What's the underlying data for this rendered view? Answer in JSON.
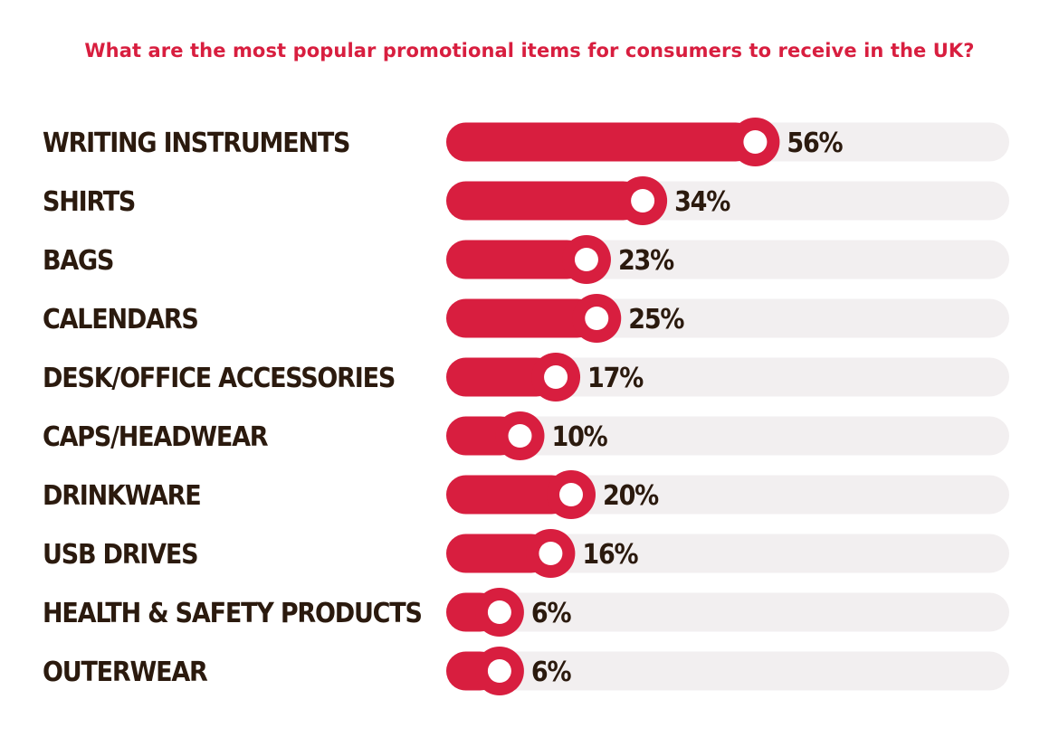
{
  "chart_data": {
    "type": "bar",
    "orientation": "horizontal",
    "title": "What are the most popular promotional items for consumers to receive in the UK?",
    "categories": [
      "WRITING INSTRUMENTS",
      "SHIRTS",
      "BAGS",
      "CALENDARS",
      "DESK/OFFICE ACCESSORIES",
      "CAPS/HEADWEAR",
      "DRINKWARE",
      "USB DRIVES",
      "HEALTH & SAFETY PRODUCTS",
      "OUTERWEAR"
    ],
    "values": [
      56,
      34,
      23,
      25,
      17,
      10,
      20,
      16,
      6,
      6
    ],
    "value_labels": [
      "56%",
      "34%",
      "23%",
      "25%",
      "17%",
      "10%",
      "20%",
      "16%",
      "6%",
      "6%"
    ],
    "unit": "%",
    "xlim": [
      0,
      100
    ],
    "grid": false,
    "legend": "none"
  },
  "colors": {
    "accent": "#d81e3f",
    "track": "#f2eff0",
    "label": "#2b1a0e",
    "knob_center": "#ffffff"
  }
}
